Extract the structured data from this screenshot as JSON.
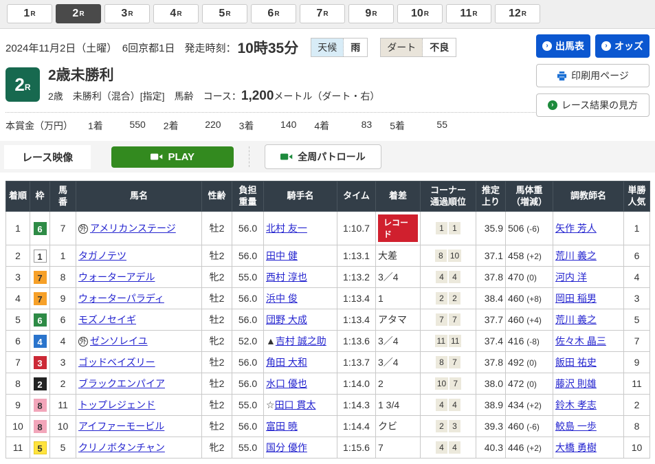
{
  "tabs": {
    "suffix": "R",
    "items": [
      {
        "num": "1",
        "selected": false
      },
      {
        "num": "2",
        "selected": true
      },
      {
        "num": "3",
        "selected": false
      },
      {
        "num": "4",
        "selected": false
      },
      {
        "num": "5",
        "selected": false
      },
      {
        "num": "6",
        "selected": false
      },
      {
        "num": "7",
        "selected": false
      },
      {
        "num": "9",
        "selected": false
      },
      {
        "num": "10",
        "selected": false
      },
      {
        "num": "11",
        "selected": false
      },
      {
        "num": "12",
        "selected": false
      }
    ]
  },
  "header": {
    "date": "2024年11月2日（土曜）　6回京都1日",
    "start_label": "発走時刻：",
    "start_time": "10時35分",
    "weather_label": "天候",
    "weather_value": "雨",
    "track_label": "ダート",
    "track_value": "不良",
    "entries_button": "出馬表",
    "odds_button": "オッズ",
    "print_button": "印刷用ページ",
    "guide_button": "レース結果の見方"
  },
  "race": {
    "number": "2",
    "number_suffix": "R",
    "title": "2歳未勝利",
    "conditions_before": "2歳　未勝利（混合）[指定]　馬齢　コース：",
    "distance": "1,200",
    "conditions_after": "メートル（ダート・右）"
  },
  "prize": {
    "label": "本賞金（万円）",
    "items": [
      {
        "rank": "1着",
        "amount": "550"
      },
      {
        "rank": "2着",
        "amount": "220"
      },
      {
        "rank": "3着",
        "amount": "140"
      },
      {
        "rank": "4着",
        "amount": "83"
      },
      {
        "rank": "5着",
        "amount": "55"
      }
    ]
  },
  "video": {
    "label": "レース映像",
    "play": "PLAY",
    "patrol": "全周パトロール"
  },
  "results": {
    "headers": [
      [
        "着順"
      ],
      [
        "枠"
      ],
      [
        "馬",
        "番"
      ],
      [
        "馬名"
      ],
      [
        "性齢"
      ],
      [
        "負担",
        "重量"
      ],
      [
        "騎手名"
      ],
      [
        "タイム"
      ],
      [
        "着差"
      ],
      [
        "コーナー",
        "通過順位"
      ],
      [
        "推定",
        "上り"
      ],
      [
        "馬体重",
        "（増減）"
      ],
      [
        "調教師名"
      ],
      [
        "単勝",
        "人気"
      ]
    ],
    "foreign_mark": "外",
    "record_label": "レコード",
    "rows": [
      {
        "pos": "1",
        "frame": "6",
        "num": "7",
        "foreign": true,
        "horse": "アメリカンステージ",
        "sexage": "牡2",
        "weight": "56.0",
        "jockey_mark": "",
        "jockey": "北村 友一",
        "time": "1:10.7",
        "margin": "",
        "record": true,
        "corners": [
          "1",
          "1"
        ],
        "last3f": "35.9",
        "body_weight": "506",
        "body_diff": "(-6)",
        "trainer": "矢作 芳人",
        "popularity": "1"
      },
      {
        "pos": "2",
        "frame": "1",
        "num": "1",
        "foreign": false,
        "horse": "タガノテツ",
        "sexage": "牡2",
        "weight": "56.0",
        "jockey_mark": "",
        "jockey": "田中 健",
        "time": "1:13.1",
        "margin": "大差",
        "record": false,
        "corners": [
          "8",
          "10"
        ],
        "last3f": "37.1",
        "body_weight": "458",
        "body_diff": "(+2)",
        "trainer": "荒川 義之",
        "popularity": "6"
      },
      {
        "pos": "3",
        "frame": "7",
        "num": "8",
        "foreign": false,
        "horse": "ウォーターアデル",
        "sexage": "牝2",
        "weight": "55.0",
        "jockey_mark": "",
        "jockey": "西村 淳也",
        "time": "1:13.2",
        "margin": "3／4",
        "record": false,
        "corners": [
          "4",
          "4"
        ],
        "last3f": "37.8",
        "body_weight": "470",
        "body_diff": "(0)",
        "trainer": "河内 洋",
        "popularity": "4"
      },
      {
        "pos": "4",
        "frame": "7",
        "num": "9",
        "foreign": false,
        "horse": "ウォーターパラディ",
        "sexage": "牡2",
        "weight": "56.0",
        "jockey_mark": "",
        "jockey": "浜中 俊",
        "time": "1:13.4",
        "margin": "1",
        "record": false,
        "corners": [
          "2",
          "2"
        ],
        "last3f": "38.4",
        "body_weight": "460",
        "body_diff": "(+8)",
        "trainer": "岡田 稲男",
        "popularity": "3"
      },
      {
        "pos": "5",
        "frame": "6",
        "num": "6",
        "foreign": false,
        "horse": "モズノセイギ",
        "sexage": "牡2",
        "weight": "56.0",
        "jockey_mark": "",
        "jockey": "団野 大成",
        "time": "1:13.4",
        "margin": "アタマ",
        "record": false,
        "corners": [
          "7",
          "7"
        ],
        "last3f": "37.7",
        "body_weight": "460",
        "body_diff": "(+4)",
        "trainer": "荒川 義之",
        "popularity": "5"
      },
      {
        "pos": "6",
        "frame": "4",
        "num": "4",
        "foreign": true,
        "horse": "ゼンソレイユ",
        "sexage": "牝2",
        "weight": "52.0",
        "jockey_mark": "▲",
        "jockey": "吉村 誠之助",
        "time": "1:13.6",
        "margin": "3／4",
        "record": false,
        "corners": [
          "11",
          "11"
        ],
        "last3f": "37.4",
        "body_weight": "416",
        "body_diff": "(-8)",
        "trainer": "佐々木 晶三",
        "popularity": "7"
      },
      {
        "pos": "7",
        "frame": "3",
        "num": "3",
        "foreign": false,
        "horse": "ゴッドベイズリー",
        "sexage": "牡2",
        "weight": "56.0",
        "jockey_mark": "",
        "jockey": "角田 大和",
        "time": "1:13.7",
        "margin": "3／4",
        "record": false,
        "corners": [
          "8",
          "7"
        ],
        "last3f": "37.8",
        "body_weight": "492",
        "body_diff": "(0)",
        "trainer": "飯田 祐史",
        "popularity": "9"
      },
      {
        "pos": "8",
        "frame": "2",
        "num": "2",
        "foreign": false,
        "horse": "ブラックエンパイア",
        "sexage": "牡2",
        "weight": "56.0",
        "jockey_mark": "",
        "jockey": "水口 優也",
        "time": "1:14.0",
        "margin": "2",
        "record": false,
        "corners": [
          "10",
          "7"
        ],
        "last3f": "38.0",
        "body_weight": "472",
        "body_diff": "(0)",
        "trainer": "藤沢 則雄",
        "popularity": "11"
      },
      {
        "pos": "9",
        "frame": "8",
        "num": "11",
        "foreign": false,
        "horse": "トップレジェンド",
        "sexage": "牡2",
        "weight": "55.0",
        "jockey_mark": "☆",
        "jockey": "田口 貫太",
        "time": "1:14.3",
        "margin": "1 3/4",
        "record": false,
        "corners": [
          "4",
          "4"
        ],
        "last3f": "38.9",
        "body_weight": "434",
        "body_diff": "(+2)",
        "trainer": "鈴木 孝志",
        "popularity": "2"
      },
      {
        "pos": "10",
        "frame": "8",
        "num": "10",
        "foreign": false,
        "horse": "アイファーモービル",
        "sexage": "牡2",
        "weight": "56.0",
        "jockey_mark": "",
        "jockey": "富田 暁",
        "time": "1:14.4",
        "margin": "クビ",
        "record": false,
        "corners": [
          "2",
          "3"
        ],
        "last3f": "39.3",
        "body_weight": "460",
        "body_diff": "(-6)",
        "trainer": "鮫島 一歩",
        "popularity": "8"
      },
      {
        "pos": "11",
        "frame": "5",
        "num": "5",
        "foreign": false,
        "horse": "クリノボタンチャン",
        "sexage": "牝2",
        "weight": "55.0",
        "jockey_mark": "",
        "jockey": "国分 優作",
        "time": "1:15.6",
        "margin": "7",
        "record": false,
        "corners": [
          "4",
          "4"
        ],
        "last3f": "40.3",
        "body_weight": "446",
        "body_diff": "(+2)",
        "trainer": "大橋 勇樹",
        "popularity": "10"
      }
    ]
  },
  "colors": {
    "accent_blue": "#0b57d0",
    "play_green": "#338a1f",
    "race_badge_green": "#17694f",
    "table_header": "#333e48",
    "record_red": "#d0202e",
    "frame_colors": {
      "1": {
        "bg": "#ffffff",
        "fg": "#333333",
        "border": "#999999"
      },
      "2": {
        "bg": "#222222",
        "fg": "#ffffff",
        "border": "#222222"
      },
      "3": {
        "bg": "#cc2936",
        "fg": "#ffffff",
        "border": "#cc2936"
      },
      "4": {
        "bg": "#2a74cc",
        "fg": "#ffffff",
        "border": "#2a74cc"
      },
      "5": {
        "bg": "#ffe33f",
        "fg": "#333333",
        "border": "#e8cc20"
      },
      "6": {
        "bg": "#2e8b46",
        "fg": "#ffffff",
        "border": "#2e8b46"
      },
      "7": {
        "bg": "#f6a028",
        "fg": "#333333",
        "border": "#f6a028"
      },
      "8": {
        "bg": "#f2a6ba",
        "fg": "#333333",
        "border": "#f2a6ba"
      }
    }
  }
}
